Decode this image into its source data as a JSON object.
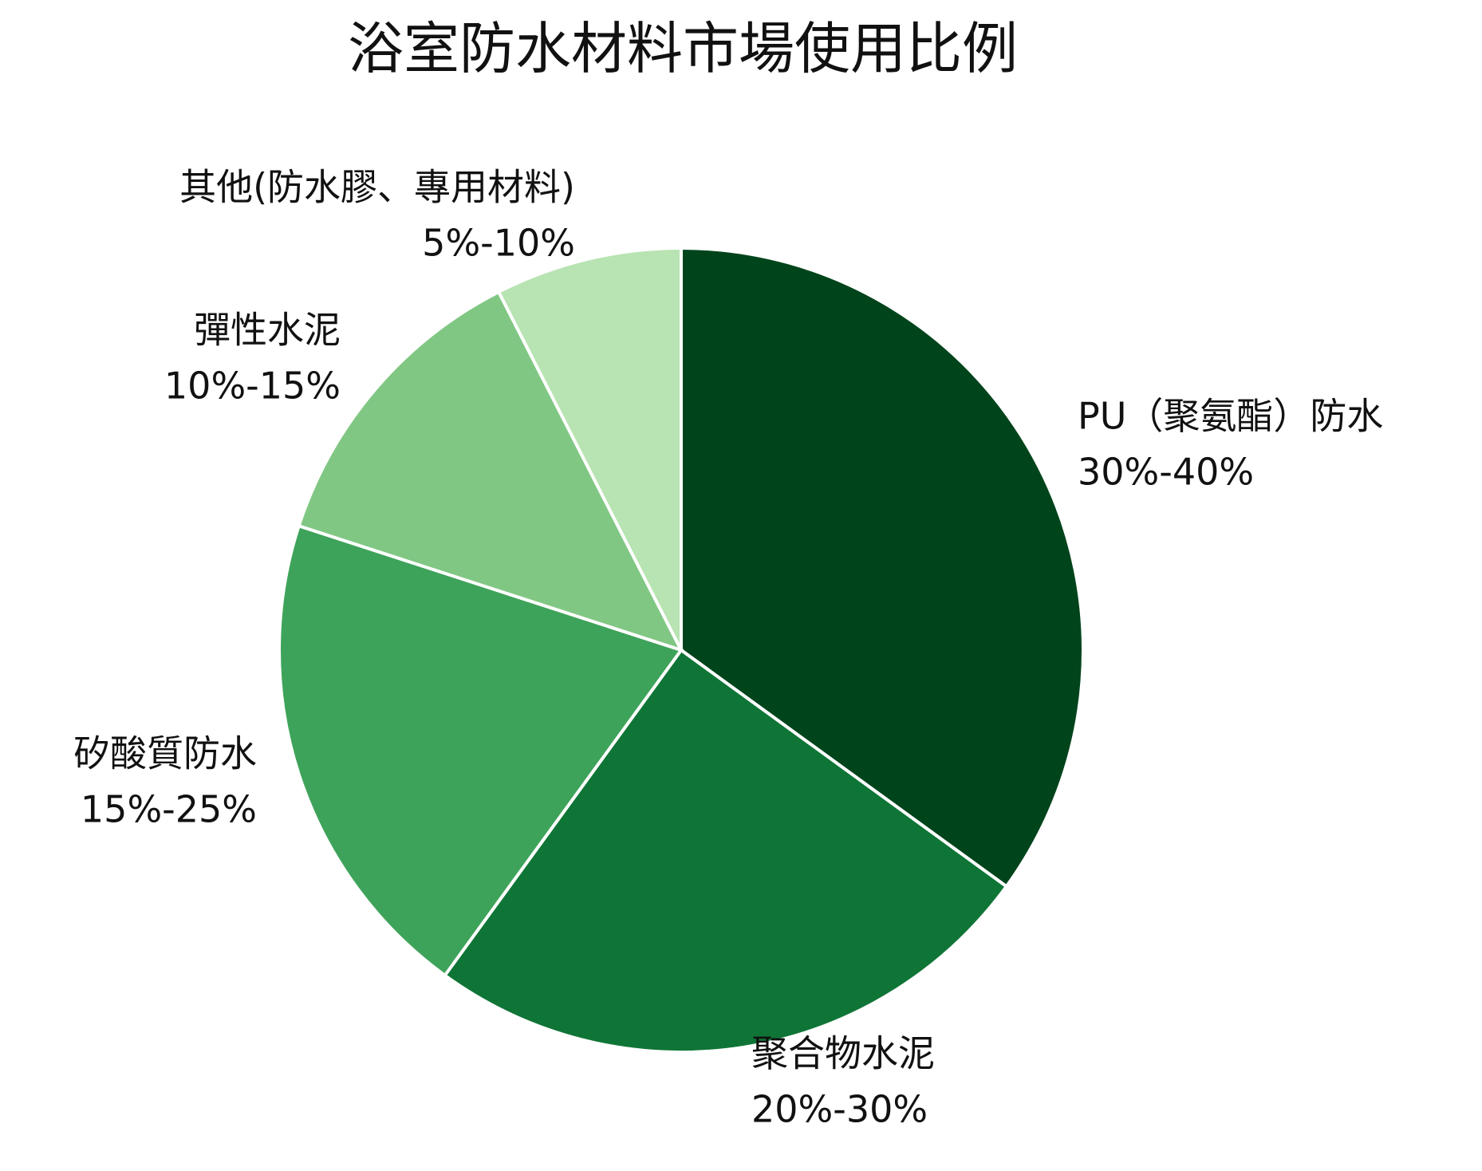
{
  "chart_data": {
    "type": "pie",
    "title": "浴室防水材料市場使用比例",
    "categories": [
      "PU（聚氨酯）防水",
      "聚合物水泥",
      "矽酸質防水",
      "彈性水泥",
      "其他(防水膠、專用材料)"
    ],
    "values": [
      35,
      25,
      20,
      12.5,
      7.5
    ],
    "value_labels": [
      "30%-40%",
      "20%-30%",
      "15%-25%",
      "10%-15%",
      "5%-10%"
    ],
    "colors": [
      "#00441b",
      "#0f7536",
      "#3ea35a",
      "#81c784",
      "#b8e3b2"
    ]
  }
}
